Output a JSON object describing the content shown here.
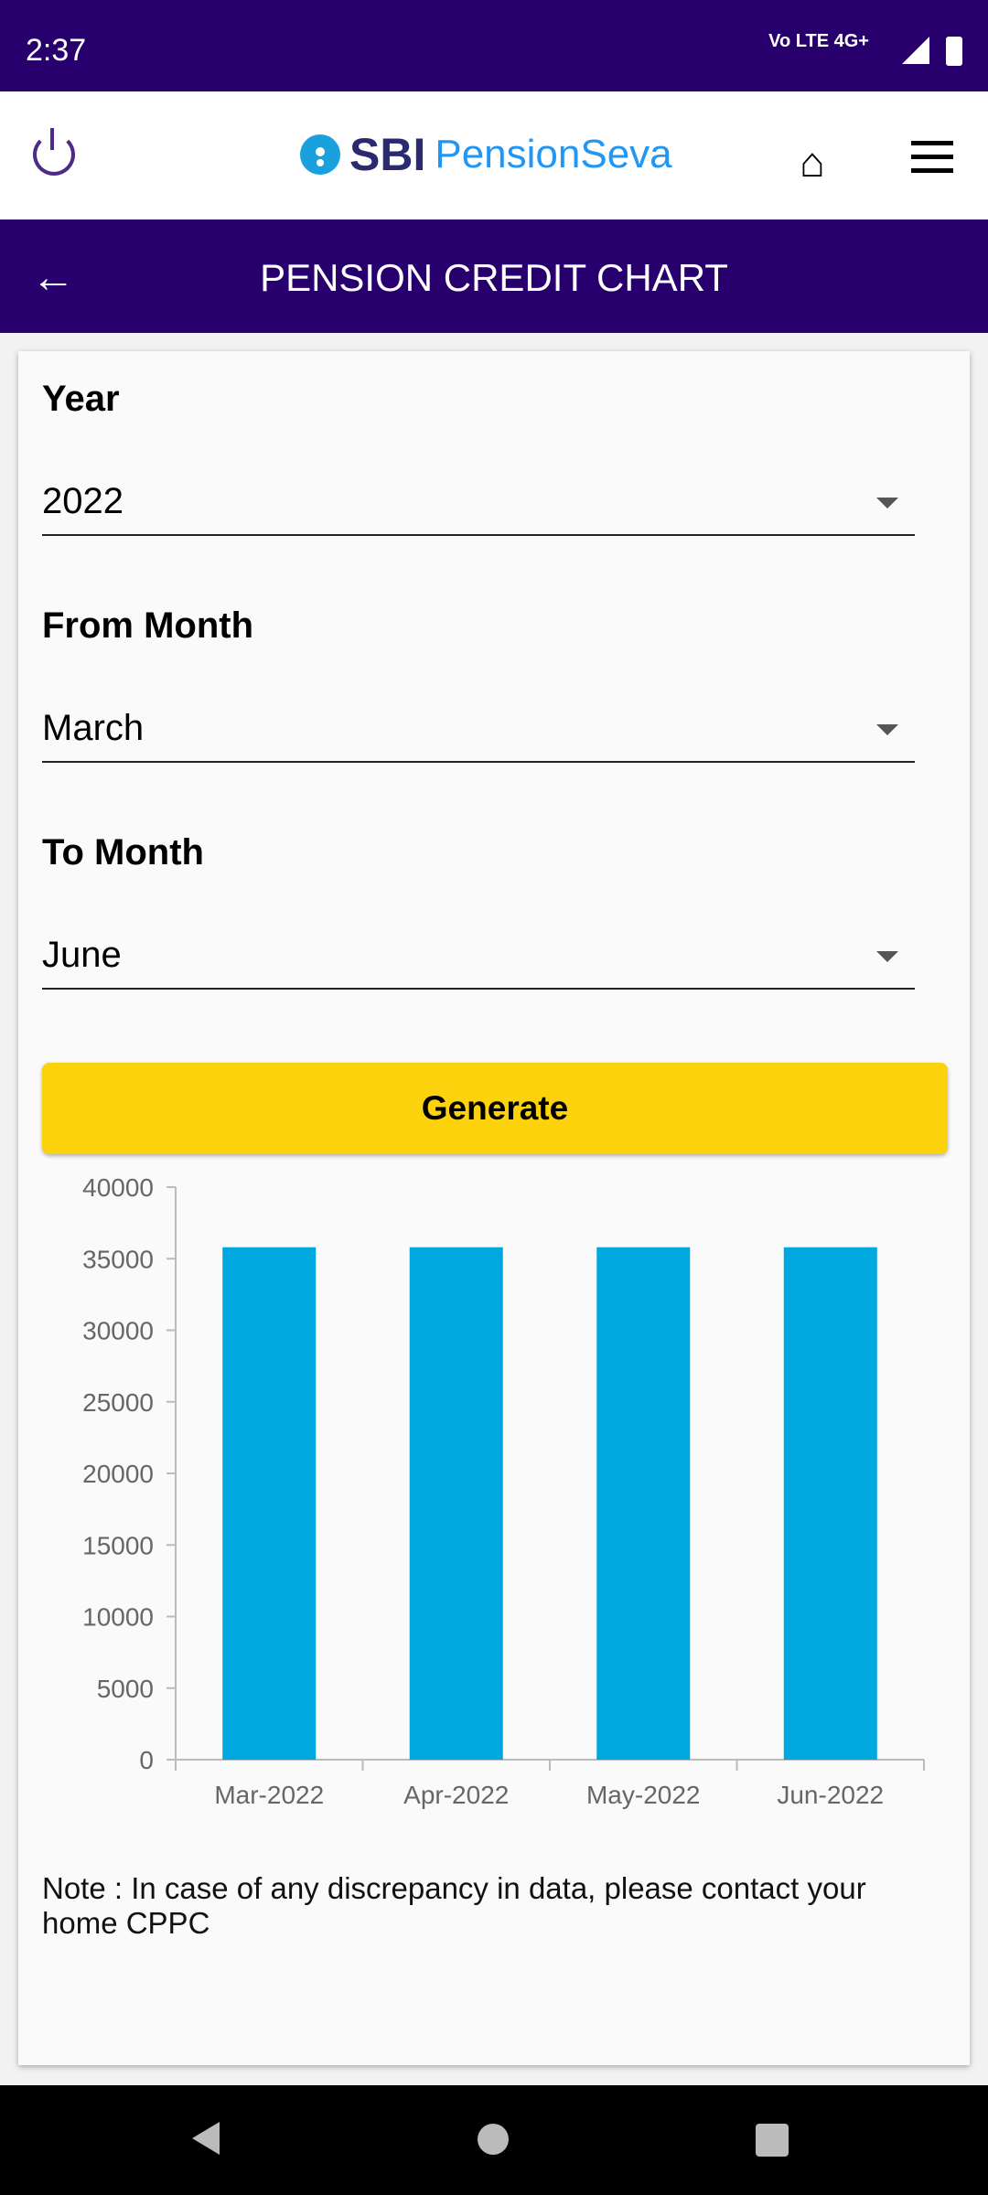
{
  "status_bar": {
    "time": "2:37",
    "network": "Vo LTE 4G+"
  },
  "header": {
    "logo_sbi": "SBI",
    "logo_name": "PensionSeva"
  },
  "title_bar": {
    "title": "PENSION CREDIT CHART"
  },
  "form": {
    "year": {
      "label": "Year",
      "value": "2022"
    },
    "from_month": {
      "label": "From Month",
      "value": "March"
    },
    "to_month": {
      "label": "To Month",
      "value": "June"
    },
    "generate_label": "Generate"
  },
  "chart_data": {
    "type": "bar",
    "categories": [
      "Mar-2022",
      "Apr-2022",
      "May-2022",
      "Jun-2022"
    ],
    "values": [
      35800,
      35800,
      35800,
      35800
    ],
    "ylim": [
      0,
      40000
    ],
    "yticks": [
      0,
      5000,
      10000,
      15000,
      20000,
      25000,
      30000,
      35000,
      40000
    ],
    "bar_color": "#00a8e0",
    "grid": false
  },
  "note": "Note : In case of any discrepancy in data, please contact your home CPPC",
  "colors": {
    "primary": "#27006e",
    "accent": "#fcd20c"
  }
}
